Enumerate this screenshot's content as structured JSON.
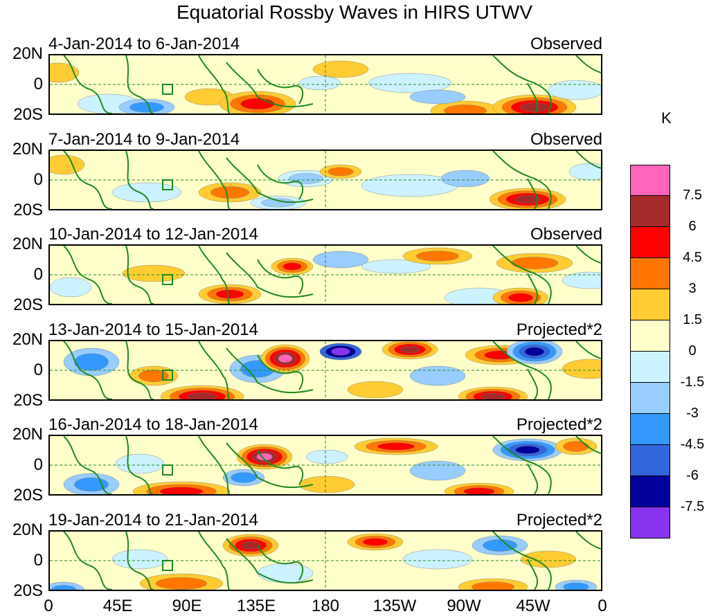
{
  "title": "Equatorial Rossby Waves in HIRS UTWV",
  "unit": "K",
  "y_labels": [
    "20N",
    "0",
    "20S"
  ],
  "x_labels": [
    "0",
    "45E",
    "90E",
    "135E",
    "180",
    "135W",
    "90W",
    "45W",
    "0"
  ],
  "panels": [
    {
      "date": "4-Jan-2014 to 6-Jan-2014",
      "kind": "Observed"
    },
    {
      "date": "7-Jan-2014 to 9-Jan-2014",
      "kind": "Observed"
    },
    {
      "date": "10-Jan-2014 to 12-Jan-2014",
      "kind": "Observed"
    },
    {
      "date": "13-Jan-2014 to 15-Jan-2014",
      "kind": "Projected*2"
    },
    {
      "date": "16-Jan-2014 to 18-Jan-2014",
      "kind": "Projected*2"
    },
    {
      "date": "19-Jan-2014 to 21-Jan-2014",
      "kind": "Projected*2"
    }
  ],
  "colorbar": {
    "colors": [
      "#ff66bb",
      "#a52a2a",
      "#ff0000",
      "#ff7700",
      "#ffcc33",
      "#ffffcc",
      "#ccf2ff",
      "#99ccff",
      "#3399ff",
      "#3366dd",
      "#000099",
      "#8833ee"
    ],
    "labels": [
      "7.5",
      "6",
      "4.5",
      "3",
      "1.5",
      "0",
      "-1.5",
      "-3",
      "-4.5",
      "-6",
      "-7.5"
    ]
  }
}
